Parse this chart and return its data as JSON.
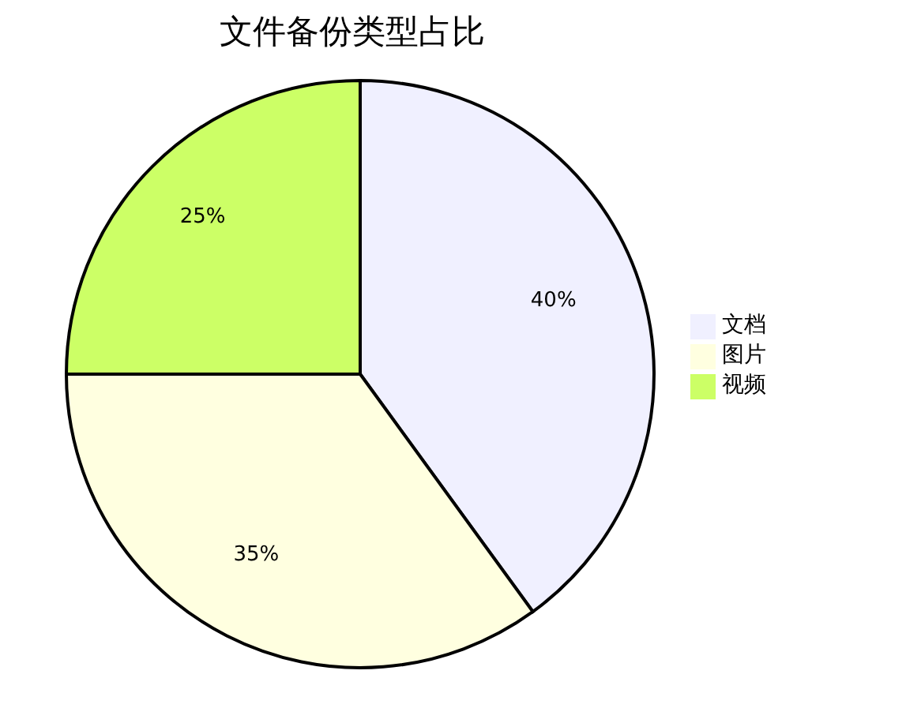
{
  "chart_data": {
    "type": "pie",
    "title": "文件备份类型占比",
    "categories": [
      "文档",
      "图片",
      "视频"
    ],
    "values": [
      40,
      35,
      25
    ],
    "value_labels": [
      "40%",
      "35%",
      "25%"
    ],
    "colors": [
      "#f0f0ff",
      "#ffffe0",
      "#ccff66"
    ],
    "legend": "right"
  }
}
